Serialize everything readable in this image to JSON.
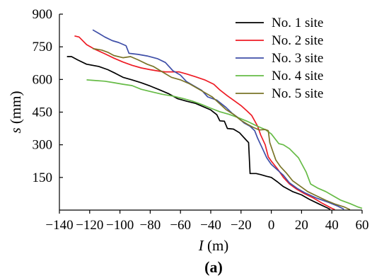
{
  "chart_data": {
    "type": "line",
    "caption": "(a)",
    "xlabel": "I (m)",
    "xlabel_var": "I",
    "xlabel_unit": " (m)",
    "ylabel": "s (mm)",
    "ylabel_var": "s",
    "ylabel_unit": " (mm)",
    "xlim": [
      -140,
      60
    ],
    "ylim": [
      0,
      900
    ],
    "xticks": [
      -140,
      -120,
      -100,
      -80,
      -60,
      -40,
      -20,
      0,
      20,
      40,
      60
    ],
    "yticks": [
      150,
      300,
      450,
      600,
      750,
      900
    ],
    "grid": false,
    "legend_position": "top-right",
    "series": [
      {
        "name": "No. 1 site",
        "color": "#000000",
        "points": [
          [
            -135,
            705
          ],
          [
            -132,
            705
          ],
          [
            -128,
            690
          ],
          [
            -122,
            670
          ],
          [
            -114,
            660
          ],
          [
            -108,
            645
          ],
          [
            -103,
            628
          ],
          [
            -98,
            610
          ],
          [
            -92,
            598
          ],
          [
            -86,
            585
          ],
          [
            -80,
            570
          ],
          [
            -74,
            553
          ],
          [
            -68,
            535
          ],
          [
            -62,
            512
          ],
          [
            -56,
            500
          ],
          [
            -50,
            490
          ],
          [
            -44,
            472
          ],
          [
            -40,
            460
          ],
          [
            -36,
            438
          ],
          [
            -34,
            410
          ],
          [
            -31,
            408
          ],
          [
            -29,
            375
          ],
          [
            -25,
            372
          ],
          [
            -21,
            355
          ],
          [
            -17,
            325
          ],
          [
            -15,
            310
          ],
          [
            -14,
            168
          ],
          [
            -10,
            168
          ],
          [
            -7,
            163
          ],
          [
            -3,
            155
          ],
          [
            0,
            150
          ],
          [
            4,
            130
          ],
          [
            8,
            108
          ],
          [
            14,
            85
          ],
          [
            20,
            70
          ],
          [
            25,
            50
          ],
          [
            31,
            30
          ],
          [
            37,
            10
          ],
          [
            39,
            3
          ]
        ]
      },
      {
        "name": "No. 2 site",
        "color": "#ee1c25",
        "points": [
          [
            -130,
            800
          ],
          [
            -127,
            795
          ],
          [
            -122,
            760
          ],
          [
            -117,
            740
          ],
          [
            -110,
            718
          ],
          [
            -104,
            698
          ],
          [
            -98,
            680
          ],
          [
            -92,
            665
          ],
          [
            -86,
            653
          ],
          [
            -80,
            645
          ],
          [
            -74,
            638
          ],
          [
            -70,
            635
          ],
          [
            -66,
            635
          ],
          [
            -61,
            635
          ],
          [
            -56,
            625
          ],
          [
            -50,
            612
          ],
          [
            -44,
            598
          ],
          [
            -38,
            578
          ],
          [
            -34,
            552
          ],
          [
            -29,
            525
          ],
          [
            -25,
            505
          ],
          [
            -20,
            480
          ],
          [
            -16,
            455
          ],
          [
            -13,
            435
          ],
          [
            -11,
            410
          ],
          [
            -9,
            385
          ],
          [
            -7,
            345
          ],
          [
            -4,
            300
          ],
          [
            -2,
            245
          ],
          [
            0,
            225
          ],
          [
            4,
            190
          ],
          [
            8,
            150
          ],
          [
            12,
            120
          ],
          [
            17,
            95
          ],
          [
            22,
            75
          ],
          [
            28,
            55
          ],
          [
            34,
            30
          ],
          [
            40,
            8
          ],
          [
            42,
            2
          ]
        ]
      },
      {
        "name": "No. 3 site",
        "color": "#3f4fa8",
        "points": [
          [
            -118,
            828
          ],
          [
            -114,
            812
          ],
          [
            -110,
            795
          ],
          [
            -105,
            778
          ],
          [
            -101,
            770
          ],
          [
            -96,
            755
          ],
          [
            -94,
            720
          ],
          [
            -88,
            715
          ],
          [
            -82,
            708
          ],
          [
            -75,
            695
          ],
          [
            -70,
            678
          ],
          [
            -65,
            640
          ],
          [
            -60,
            620
          ],
          [
            -56,
            590
          ],
          [
            -51,
            570
          ],
          [
            -46,
            550
          ],
          [
            -42,
            520
          ],
          [
            -36,
            505
          ],
          [
            -30,
            472
          ],
          [
            -26,
            445
          ],
          [
            -22,
            425
          ],
          [
            -18,
            400
          ],
          [
            -14,
            385
          ],
          [
            -11,
            365
          ],
          [
            -9,
            330
          ],
          [
            -6,
            285
          ],
          [
            -3,
            240
          ],
          [
            0,
            210
          ],
          [
            4,
            185
          ],
          [
            8,
            160
          ],
          [
            12,
            125
          ],
          [
            17,
            100
          ],
          [
            22,
            80
          ],
          [
            30,
            55
          ],
          [
            38,
            35
          ],
          [
            44,
            18
          ],
          [
            48,
            4
          ]
        ]
      },
      {
        "name": "No. 4 site",
        "color": "#66bb46",
        "points": [
          [
            -122,
            598
          ],
          [
            -116,
            595
          ],
          [
            -110,
            592
          ],
          [
            -104,
            585
          ],
          [
            -98,
            578
          ],
          [
            -92,
            572
          ],
          [
            -86,
            555
          ],
          [
            -80,
            545
          ],
          [
            -72,
            532
          ],
          [
            -64,
            522
          ],
          [
            -58,
            512
          ],
          [
            -52,
            500
          ],
          [
            -46,
            485
          ],
          [
            -40,
            468
          ],
          [
            -34,
            452
          ],
          [
            -28,
            440
          ],
          [
            -22,
            425
          ],
          [
            -16,
            408
          ],
          [
            -10,
            388
          ],
          [
            -4,
            370
          ],
          [
            0,
            350
          ],
          [
            5,
            305
          ],
          [
            8,
            300
          ],
          [
            12,
            282
          ],
          [
            18,
            240
          ],
          [
            23,
            175
          ],
          [
            26,
            120
          ],
          [
            31,
            100
          ],
          [
            36,
            85
          ],
          [
            41,
            65
          ],
          [
            46,
            45
          ],
          [
            52,
            30
          ],
          [
            57,
            15
          ],
          [
            60,
            8
          ]
        ]
      },
      {
        "name": "No. 5 site",
        "color": "#7a7428",
        "points": [
          [
            -118,
            742
          ],
          [
            -112,
            735
          ],
          [
            -108,
            725
          ],
          [
            -104,
            710
          ],
          [
            -98,
            700
          ],
          [
            -93,
            705
          ],
          [
            -88,
            690
          ],
          [
            -82,
            670
          ],
          [
            -78,
            660
          ],
          [
            -72,
            635
          ],
          [
            -66,
            610
          ],
          [
            -60,
            598
          ],
          [
            -54,
            580
          ],
          [
            -49,
            560
          ],
          [
            -44,
            540
          ],
          [
            -39,
            520
          ],
          [
            -34,
            488
          ],
          [
            -30,
            462
          ],
          [
            -25,
            440
          ],
          [
            -20,
            412
          ],
          [
            -16,
            395
          ],
          [
            -12,
            380
          ],
          [
            -8,
            368
          ],
          [
            -4,
            370
          ],
          [
            -2,
            365
          ],
          [
            -1,
            310
          ],
          [
            1,
            270
          ],
          [
            3,
            230
          ],
          [
            6,
            200
          ],
          [
            10,
            170
          ],
          [
            14,
            135
          ],
          [
            19,
            110
          ],
          [
            24,
            85
          ],
          [
            30,
            65
          ],
          [
            36,
            45
          ],
          [
            42,
            28
          ],
          [
            48,
            15
          ],
          [
            52,
            2
          ]
        ]
      }
    ]
  }
}
